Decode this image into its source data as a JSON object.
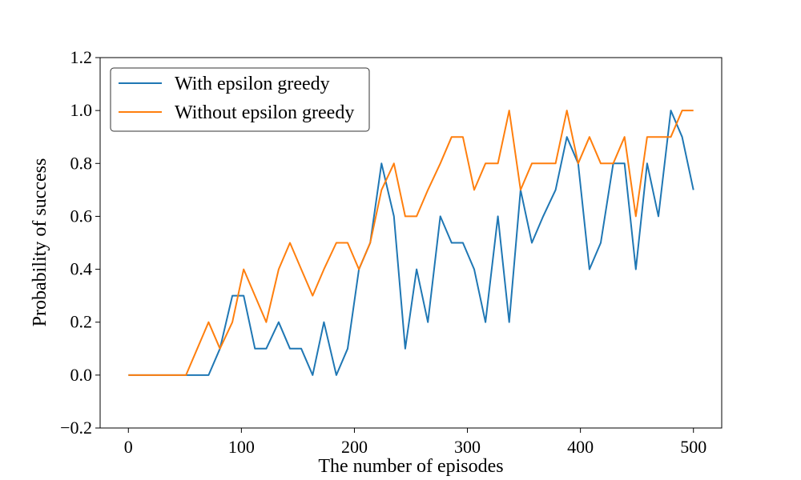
{
  "chart_data": {
    "type": "line",
    "title": "",
    "xlabel": "The number of episodes",
    "ylabel": "Probability of success",
    "xlim": [
      -25,
      525
    ],
    "ylim": [
      -0.2,
      1.2
    ],
    "xticks": [
      0,
      100,
      200,
      300,
      400,
      500
    ],
    "xtick_labels": [
      "0",
      "100",
      "200",
      "300",
      "400",
      "500"
    ],
    "yticks": [
      -0.2,
      0.0,
      0.2,
      0.4,
      0.6,
      0.8,
      1.0,
      1.2
    ],
    "ytick_labels": [
      "−0.2",
      "0.0",
      "0.2",
      "0.4",
      "0.6",
      "0.8",
      "1.0",
      "1.2"
    ],
    "grid": false,
    "legend_position": "top-left",
    "x": [
      0,
      10,
      20,
      30,
      40,
      51,
      61,
      71,
      81,
      92,
      102,
      112,
      122,
      133,
      143,
      153,
      163,
      173,
      184,
      194,
      204,
      214,
      224,
      235,
      245,
      255,
      265,
      276,
      286,
      296,
      306,
      316,
      327,
      337,
      347,
      357,
      367,
      378,
      388,
      398,
      408,
      418,
      429,
      439,
      449,
      459,
      469,
      480,
      490,
      500
    ],
    "series": [
      {
        "name": "With epsilon greedy",
        "color": "#1f77b4",
        "values": [
          0,
          0,
          0,
          0,
          0,
          0,
          0,
          0,
          0.1,
          0.3,
          0.3,
          0.1,
          0.1,
          0.2,
          0.1,
          0.1,
          0,
          0.2,
          0,
          0.1,
          0.4,
          0.5,
          0.8,
          0.6,
          0.1,
          0.4,
          0.2,
          0.6,
          0.5,
          0.5,
          0.4,
          0.2,
          0.6,
          0.2,
          0.7,
          0.5,
          0.6,
          0.7,
          0.9,
          0.8,
          0.4,
          0.5,
          0.8,
          0.8,
          0.4,
          0.8,
          0.6,
          1.0,
          0.9,
          0.7
        ]
      },
      {
        "name": "Without epsilon greedy",
        "color": "#ff7f0e",
        "values": [
          0,
          0,
          0,
          0,
          0,
          0,
          0.1,
          0.2,
          0.1,
          0.2,
          0.4,
          0.3,
          0.2,
          0.4,
          0.5,
          0.4,
          0.3,
          0.4,
          0.5,
          0.5,
          0.4,
          0.5,
          0.7,
          0.8,
          0.6,
          0.6,
          0.7,
          0.8,
          0.9,
          0.9,
          0.7,
          0.8,
          0.8,
          1.0,
          0.7,
          0.8,
          0.8,
          0.8,
          1.0,
          0.8,
          0.9,
          0.8,
          0.8,
          0.9,
          0.6,
          0.9,
          0.9,
          0.9,
          1.0,
          1.0
        ]
      }
    ]
  }
}
